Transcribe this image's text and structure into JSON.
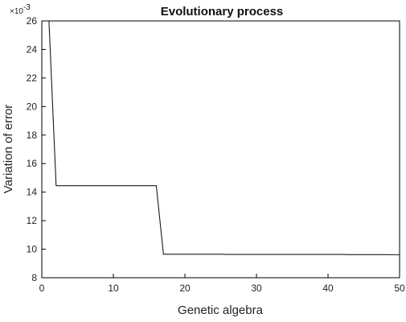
{
  "chart_data": {
    "type": "line",
    "title": "Evolutionary process",
    "xlabel": "Genetic algebra",
    "ylabel": "Variation of error",
    "y_scale_label": {
      "base": "×10",
      "exponent": "-3"
    },
    "xlim": [
      0,
      50
    ],
    "ylim": [
      8,
      26
    ],
    "x_ticks": [
      0,
      10,
      20,
      30,
      40,
      50
    ],
    "y_ticks": [
      8,
      10,
      12,
      14,
      16,
      18,
      20,
      22,
      24,
      26
    ],
    "grid": false,
    "legend": "none",
    "line_color": "#1a1a1a",
    "series": [
      {
        "x": [
          1,
          2,
          3,
          4,
          5,
          6,
          7,
          8,
          9,
          10,
          11,
          12,
          13,
          14,
          15,
          16,
          17,
          18,
          19,
          20,
          21,
          22,
          23,
          24,
          25,
          26,
          27,
          28,
          29,
          30,
          31,
          32,
          33,
          34,
          35,
          36,
          37,
          38,
          39,
          40,
          41,
          42,
          43,
          44,
          45,
          46,
          47,
          48,
          49,
          50
        ],
        "y": [
          26.2,
          14.45,
          14.45,
          14.45,
          14.45,
          14.45,
          14.45,
          14.45,
          14.45,
          14.45,
          14.45,
          14.45,
          14.45,
          14.45,
          14.45,
          14.45,
          9.65,
          9.65,
          9.65,
          9.65,
          9.65,
          9.65,
          9.65,
          9.65,
          9.65,
          9.63,
          9.63,
          9.63,
          9.63,
          9.63,
          9.63,
          9.63,
          9.63,
          9.63,
          9.63,
          9.63,
          9.63,
          9.63,
          9.63,
          9.63,
          9.63,
          9.63,
          9.62,
          9.62,
          9.62,
          9.62,
          9.62,
          9.62,
          9.61,
          9.61
        ]
      }
    ]
  }
}
